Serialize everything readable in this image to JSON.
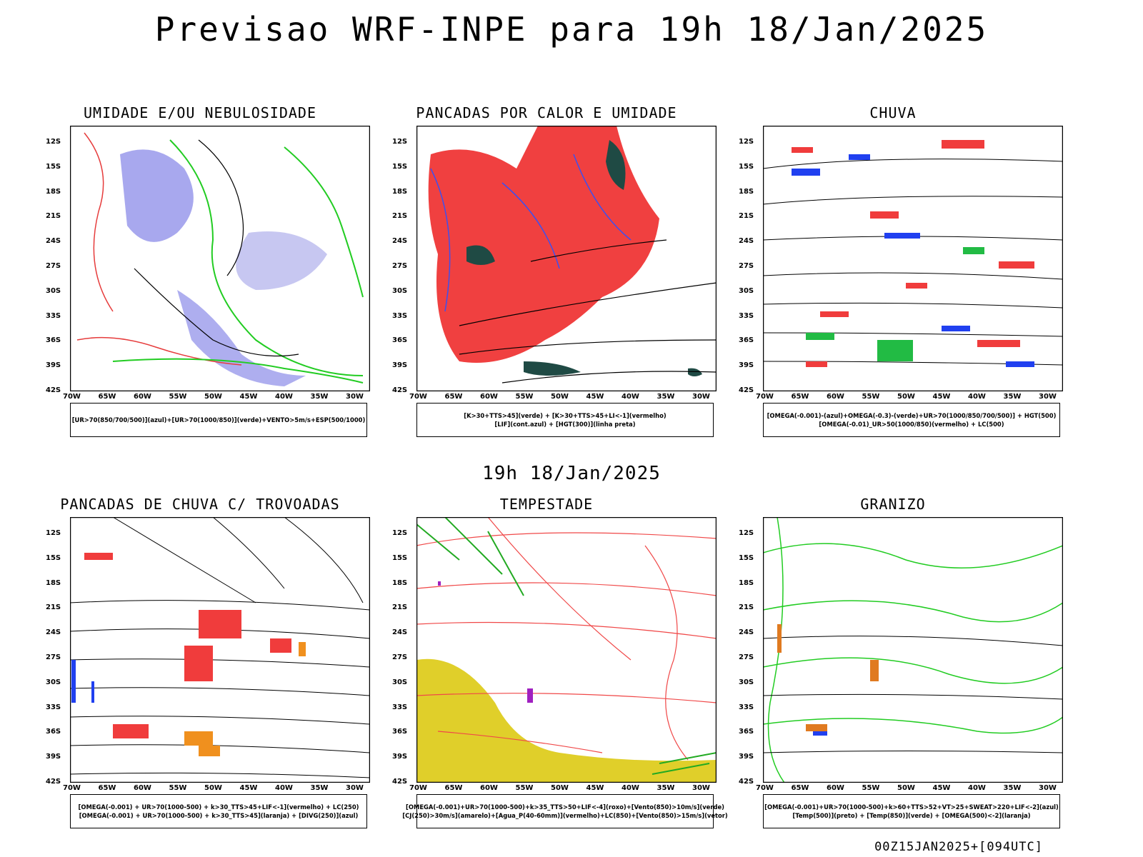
{
  "title": "Previsao WRF-INPE  para 19h 18/Jan/2025",
  "middle_title": "19h 18/Jan/2025",
  "footer": "00Z15JAN2025+[094UTC]",
  "lat_labels": [
    "12S",
    "15S",
    "18S",
    "21S",
    "24S",
    "27S",
    "30S",
    "33S",
    "36S",
    "39S",
    "42S"
  ],
  "lon_labels": [
    "70W",
    "65W",
    "60W",
    "55W",
    "50W",
    "45W",
    "40W",
    "35W",
    "30W"
  ],
  "panels": [
    {
      "title": "UMIDADE E/OU NEBULOSIDADE",
      "legend": [
        "[UR>70(850/700/500)](azul)+[UR>70(1000/850)](verde)+VENTO>5m/s+ESP(500/1000)"
      ],
      "colors": {
        "fill": "#8b8be8",
        "line": "#22cc22",
        "contour": "#e63c3c"
      }
    },
    {
      "title": "PANCADAS POR CALOR E UMIDADE",
      "legend": [
        "[K>30+TTS>45](verde) + [K>30+TTS>45+LI<-1](vermelho)",
        "[LIF](cont.azul) + [HGT(300)](linha preta)"
      ],
      "colors": {
        "fill": "#f04040",
        "line": "#3c50f0",
        "dark": "#1f4a44"
      }
    },
    {
      "title": "CHUVA",
      "legend": [
        "[OMEGA(-0.001)-(azul)+OMEGA(-0.3)-(verde)+UR>70(1000/850/700/500)] + HGT(500)",
        "[OMEGA(-0.01)_UR>50(1000/850)(vermelho) + LC(500)"
      ],
      "colors": {
        "red": "#f03c3c",
        "blue": "#2040f0",
        "green": "#22bb44"
      }
    },
    {
      "title": "PANCADAS DE CHUVA C/ TROVOADAS",
      "legend": [
        "[OMEGA(-0.001) + UR>70(1000-500) + k>30_TTS>45+LIF<-1](vermelho) + LC(250)",
        "[OMEGA(-0.001) + UR>70(1000-500) + k>30_TTS>45](laranja) + [DIVG(250)](azul)"
      ],
      "colors": {
        "red": "#f03c3c",
        "orange": "#f0901e",
        "blue": "#2040f0"
      }
    },
    {
      "title": "TEMPESTADE",
      "legend": [
        "[OMEGA(-0.001)+UR>70(1000-500)+k>35_TTS>50+LIF<-4](roxo)+[Vento(850)>10m/s](verde)",
        "[CJ(250)>30m/s](amarelo)+[Agua_P(40-60mm)](vermelho)+LC(850)+[Vento(850)>15m/s](vetor)"
      ],
      "colors": {
        "yellow": "#e0cf2a",
        "red": "#f04848",
        "green": "#22aa22",
        "purple": "#a020c0"
      }
    },
    {
      "title": "GRANIZO",
      "legend": [
        "[OMEGA(-0.001)+UR>70(1000-500)+k>60+TTS>52+VT>25+SWEAT>220+LIF<-2](azul)",
        "[Temp(500)](preto) + [Temp(850)](verde) + [OMEGA(500)<-2](laranja)"
      ],
      "colors": {
        "green": "#22cc22",
        "orange": "#e07a20",
        "blue": "#2040f0"
      }
    }
  ]
}
